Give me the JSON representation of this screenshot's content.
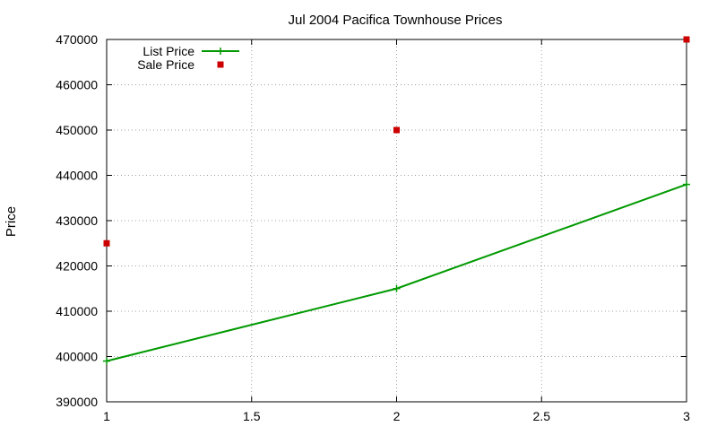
{
  "chart_data": {
    "type": "line",
    "title": "Jul 2004 Pacifica Townhouse Prices",
    "xlabel": "",
    "ylabel": "Price",
    "xlim": [
      1,
      3
    ],
    "ylim": [
      390000,
      470000
    ],
    "xticks": [
      1,
      1.5,
      2,
      2.5,
      3
    ],
    "xtick_labels": [
      "1",
      "1.5",
      "2",
      "2.5",
      "3"
    ],
    "yticks": [
      390000,
      400000,
      410000,
      420000,
      430000,
      440000,
      450000,
      460000,
      470000
    ],
    "ytick_labels": [
      "390000",
      "400000",
      "410000",
      "420000",
      "430000",
      "440000",
      "450000",
      "460000",
      "470000"
    ],
    "grid": true,
    "legend_position": "top-left",
    "series": [
      {
        "name": "List Price",
        "style": "linespoints",
        "marker": "plus",
        "color": "#009900",
        "x": [
          1,
          2,
          3
        ],
        "y": [
          399000,
          415000,
          438000
        ]
      },
      {
        "name": "Sale Price",
        "style": "points",
        "marker": "square",
        "color": "#cc0000",
        "x": [
          1,
          2,
          3
        ],
        "y": [
          425000,
          450000,
          470000
        ]
      }
    ]
  }
}
